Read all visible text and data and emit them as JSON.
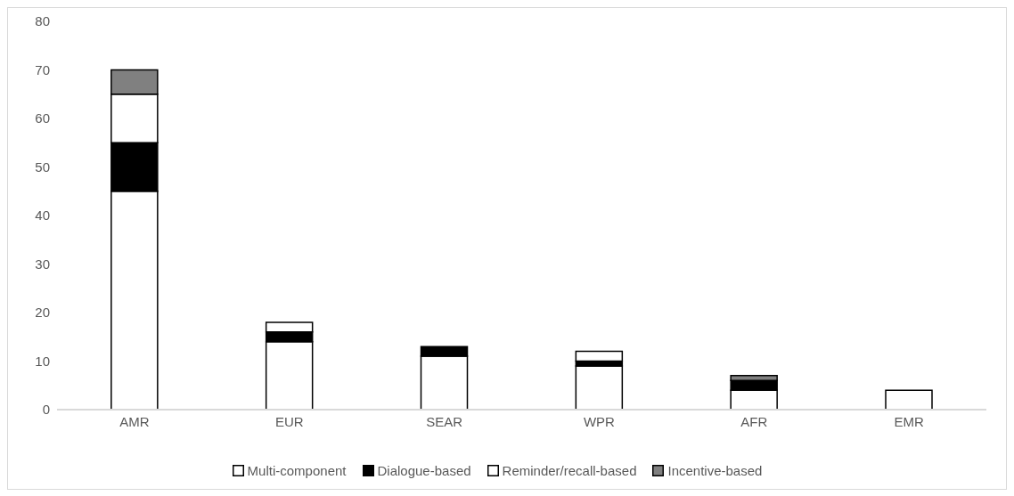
{
  "chart_data": {
    "type": "bar",
    "stacked": true,
    "categories": [
      "AMR",
      "EUR",
      "SEAR",
      "WPR",
      "AFR",
      "EMR"
    ],
    "series": [
      {
        "name": "Multi-component",
        "color": "#ffffff",
        "values": [
          45,
          14,
          11,
          9,
          4,
          4
        ]
      },
      {
        "name": "Dialogue-based",
        "color": "#000000",
        "values": [
          10,
          2,
          2,
          1,
          2,
          0
        ]
      },
      {
        "name": "Reminder/recall-based",
        "color": "#ffffff",
        "values": [
          10,
          2,
          0,
          2,
          0,
          0
        ]
      },
      {
        "name": "Incentive-based",
        "color": "#808080",
        "values": [
          5,
          0,
          0,
          0,
          1,
          0
        ]
      }
    ],
    "ylim": [
      0,
      80
    ],
    "yticks": [
      0,
      10,
      20,
      30,
      40,
      50,
      60,
      70,
      80
    ],
    "grid": false,
    "legend": "bottom"
  }
}
